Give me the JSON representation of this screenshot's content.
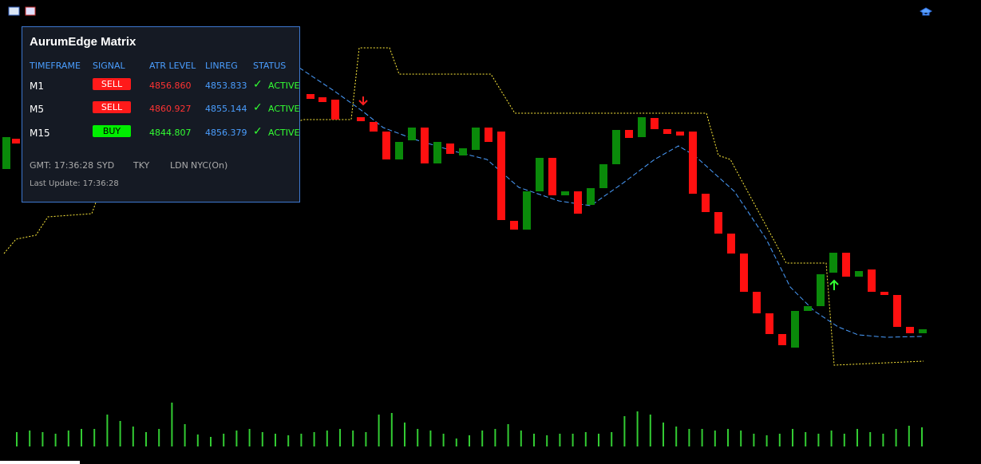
{
  "panel": {
    "title": "AurumEdge Matrix",
    "headers": [
      "TIMEFRAME",
      "SIGNAL",
      "ATR LEVEL",
      "LINREG",
      "STATUS"
    ],
    "rows": [
      [
        "M1",
        "SELL",
        "4856.860",
        "4853.833",
        "ACTIVE"
      ],
      [
        "M5",
        "SELL",
        "4860.927",
        "4855.144",
        "ACTIVE"
      ],
      [
        "M15",
        "BUY",
        "4844.807",
        "4856.379",
        "ACTIVE"
      ]
    ],
    "sessions": [
      "GMT: 17:36:28",
      "SYD",
      "TKY",
      "LDN",
      "NYC(On)"
    ],
    "last_update": "Last Update: 17:36:28"
  }
}
